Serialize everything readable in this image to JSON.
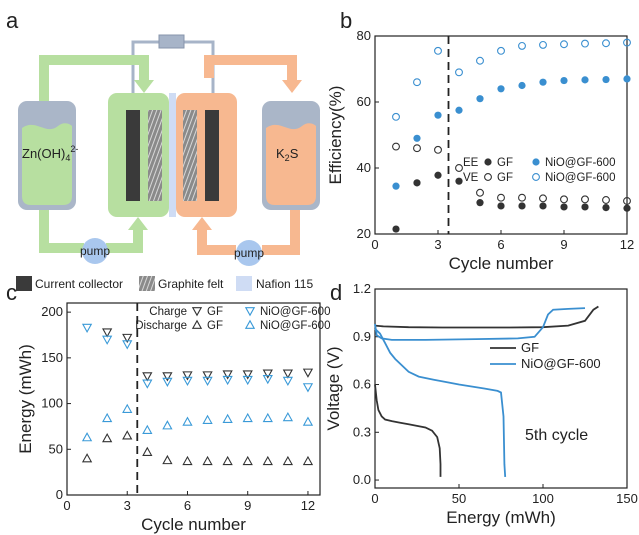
{
  "panels": {
    "a": {
      "label": "a",
      "tank_left_label": "Zn(OH)",
      "tank_left_sub": "4",
      "tank_left_sup": "2-",
      "tank_right_label": "K",
      "tank_right_sub": "2",
      "tank_right_tail": "S",
      "pump_label": "pump",
      "legend": [
        "Current collector",
        "Graphite felt",
        "Nafion 115"
      ],
      "colors": {
        "negolyte": "#b7dfa0",
        "posolyte": "#f7b890",
        "tank": "#aab6c8",
        "pump": "#a9c7ee",
        "membrane": "#cfdcf4",
        "collector": "#3a3a3a"
      }
    },
    "b": {
      "label": "b"
    },
    "c": {
      "label": "c"
    },
    "d": {
      "label": "d",
      "annotation": "5th cycle"
    }
  },
  "chart_data": [
    {
      "panel": "b",
      "type": "scatter",
      "xlabel": "Cycle number",
      "ylabel": "Efficiency(%)",
      "xlim": [
        0,
        12
      ],
      "ylim": [
        20,
        80
      ],
      "xticks": [
        0,
        3,
        6,
        9,
        12
      ],
      "yticks": [
        20,
        40,
        60,
        80
      ],
      "divider_x": 3.5,
      "legend_rows": [
        {
          "label": "EE",
          "entries": [
            {
              "marker": "filled",
              "color": "#333333",
              "name": "GF"
            },
            {
              "marker": "filled",
              "color": "#3a8fd0",
              "name": "NiO@GF-600"
            }
          ]
        },
        {
          "label": "VE",
          "entries": [
            {
              "marker": "open",
              "color": "#333333",
              "name": "GF"
            },
            {
              "marker": "open",
              "color": "#3a8fd0",
              "name": "NiO@GF-600"
            }
          ]
        }
      ],
      "series": [
        {
          "name": "EE GF",
          "marker": "filled",
          "color": "#333333",
          "x": [
            1,
            2,
            3,
            4,
            5,
            6,
            7,
            8,
            9,
            10,
            11,
            12
          ],
          "y": [
            21.5,
            35.5,
            37.8,
            36.0,
            29.5,
            28.5,
            28.5,
            28.5,
            28.2,
            28.2,
            28.0,
            27.8
          ]
        },
        {
          "name": "VE GF",
          "marker": "open",
          "color": "#333333",
          "x": [
            1,
            2,
            3,
            4,
            5,
            6,
            7,
            8,
            9,
            10,
            11,
            12
          ],
          "y": [
            46.5,
            46.0,
            45.5,
            40.0,
            32.5,
            31.0,
            31.0,
            30.8,
            30.5,
            30.5,
            30.3,
            30.0
          ]
        },
        {
          "name": "EE NiO@GF-600",
          "marker": "filled",
          "color": "#3a8fd0",
          "x": [
            1,
            2,
            3,
            4,
            5,
            6,
            7,
            8,
            9,
            10,
            11,
            12
          ],
          "y": [
            34.5,
            49.0,
            56.0,
            57.5,
            61.0,
            64.0,
            65.0,
            66.0,
            66.5,
            66.7,
            66.8,
            67.0
          ]
        },
        {
          "name": "VE NiO@GF-600",
          "marker": "open",
          "color": "#3a8fd0",
          "x": [
            1,
            2,
            3,
            4,
            5,
            6,
            7,
            8,
            9,
            10,
            11,
            12
          ],
          "y": [
            55.5,
            66.0,
            75.5,
            69.0,
            72.5,
            75.5,
            77.0,
            77.3,
            77.5,
            77.7,
            77.8,
            78.0
          ]
        }
      ]
    },
    {
      "panel": "c",
      "type": "scatter",
      "xlabel": "Cycle number",
      "ylabel": "Energy (mWh)",
      "xlim": [
        0,
        12.6
      ],
      "ylim": [
        0,
        210
      ],
      "xticks": [
        0,
        3,
        6,
        9,
        12
      ],
      "yticks": [
        0,
        50,
        100,
        150,
        200
      ],
      "divider_x": 3.5,
      "legend_rows": [
        {
          "label": "Charge",
          "entries": [
            {
              "marker": "tri-down",
              "color": "#333333",
              "name": "GF"
            },
            {
              "marker": "tri-down",
              "color": "#3a9ad8",
              "name": "NiO@GF-600"
            }
          ]
        },
        {
          "label": "Discharge",
          "entries": [
            {
              "marker": "tri-up",
              "color": "#333333",
              "name": "GF"
            },
            {
              "marker": "tri-up",
              "color": "#3a9ad8",
              "name": "NiO@GF-600"
            }
          ]
        }
      ],
      "series": [
        {
          "name": "Charge GF",
          "marker": "tri-down",
          "color": "#333333",
          "x": [
            2,
            3,
            4,
            5,
            6,
            7,
            8,
            9,
            10,
            11,
            12
          ],
          "y": [
            178,
            172,
            130,
            130,
            131,
            131,
            132,
            132,
            133,
            133,
            134
          ]
        },
        {
          "name": "Discharge GF",
          "marker": "tri-up",
          "color": "#333333",
          "x": [
            1,
            2,
            3,
            4,
            5,
            6,
            7,
            8,
            9,
            10,
            11,
            12
          ],
          "y": [
            40,
            62,
            65,
            47,
            38,
            37,
            37,
            37,
            37,
            37,
            37,
            37
          ]
        },
        {
          "name": "Charge NiO@GF-600",
          "marker": "tri-down",
          "color": "#3a9ad8",
          "x": [
            1,
            2,
            3,
            4,
            5,
            6,
            7,
            8,
            9,
            10,
            11,
            12
          ],
          "y": [
            183,
            170,
            165,
            122,
            124,
            125,
            125,
            126,
            126,
            127,
            125,
            118
          ]
        },
        {
          "name": "Discharge NiO@GF-600",
          "marker": "tri-up",
          "color": "#3a9ad8",
          "x": [
            1,
            2,
            3,
            4,
            5,
            6,
            7,
            8,
            9,
            10,
            11,
            12
          ],
          "y": [
            63,
            84,
            94,
            71,
            76,
            80,
            82,
            83,
            84,
            84,
            85,
            80
          ]
        }
      ]
    },
    {
      "panel": "d",
      "type": "line",
      "xlabel": "Energy (mWh)",
      "ylabel": "Voltage (V)",
      "xlim": [
        0,
        150
      ],
      "ylim": [
        -0.05,
        1.2
      ],
      "xticks": [
        0,
        50,
        100,
        150
      ],
      "yticks": [
        0.0,
        0.3,
        0.6,
        0.9,
        1.2
      ],
      "series": [
        {
          "name": "GF",
          "color": "#333333",
          "segments": [
            {
              "x": [
                0,
                5,
                20,
                40,
                60,
                80,
                100,
                115,
                125,
                130,
                133
              ],
              "y": [
                0.97,
                0.965,
                0.96,
                0.958,
                0.958,
                0.958,
                0.96,
                0.97,
                1.0,
                1.07,
                1.09
              ]
            },
            {
              "x": [
                0,
                1,
                2,
                4,
                6,
                10,
                15,
                20,
                25,
                30,
                34,
                37,
                38.5,
                39,
                39
              ],
              "y": [
                0.6,
                0.5,
                0.44,
                0.4,
                0.38,
                0.37,
                0.36,
                0.35,
                0.34,
                0.33,
                0.31,
                0.27,
                0.2,
                0.1,
                0.02
              ]
            }
          ]
        },
        {
          "name": "NiO@GF-600",
          "color": "#3a8fd0",
          "segments": [
            {
              "x": [
                0,
                1,
                4,
                10,
                30,
                60,
                85,
                95,
                100,
                103,
                106,
                115,
                125
              ],
              "y": [
                0.98,
                0.91,
                0.89,
                0.88,
                0.88,
                0.885,
                0.89,
                0.9,
                0.96,
                1.04,
                1.07,
                1.075,
                1.08
              ]
            },
            {
              "x": [
                0,
                3,
                6,
                9,
                12,
                16,
                20,
                26,
                35,
                50,
                65,
                73,
                75,
                76.5,
                77,
                77.5
              ],
              "y": [
                0.95,
                0.92,
                0.86,
                0.8,
                0.76,
                0.72,
                0.68,
                0.65,
                0.63,
                0.6,
                0.575,
                0.56,
                0.55,
                0.4,
                0.1,
                0.02
              ]
            }
          ]
        }
      ],
      "annotation": "5th cycle"
    }
  ]
}
